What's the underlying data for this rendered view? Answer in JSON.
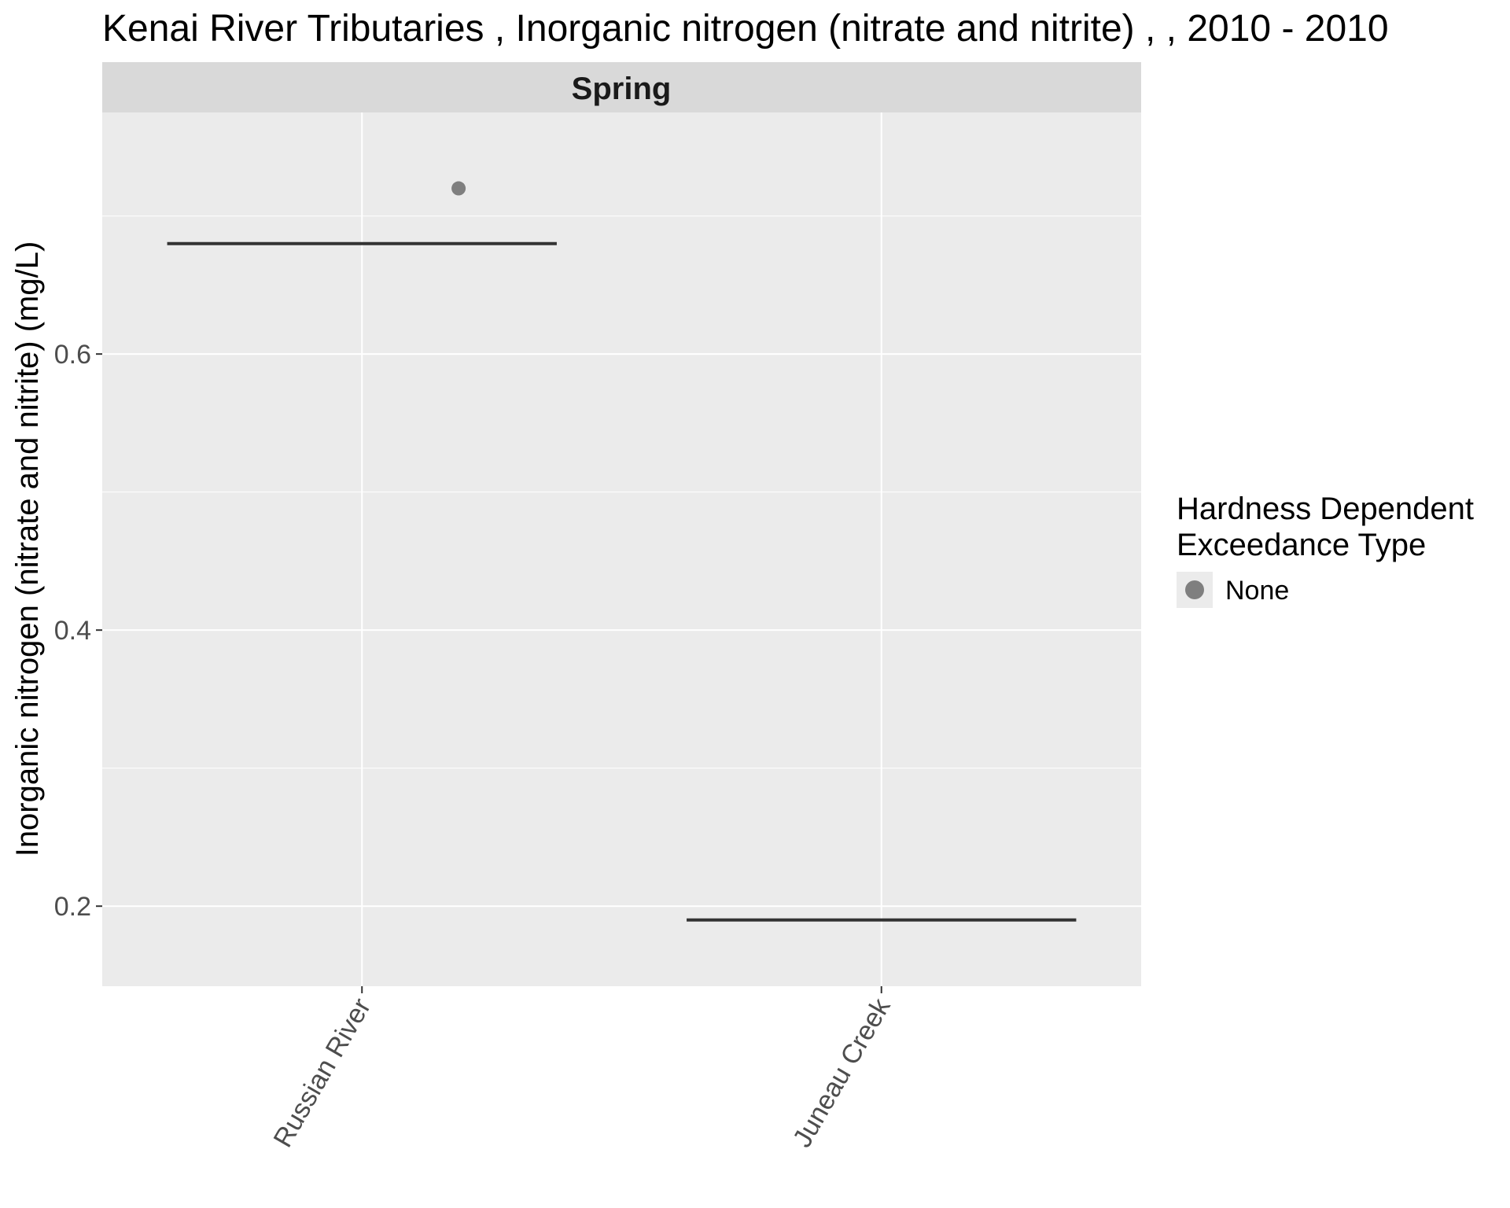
{
  "chart_data": {
    "type": "scatter",
    "title": "Kenai River Tributaries , Inorganic nitrogen (nitrate and nitrite) ,  , 2010 - 2010",
    "facet": "Spring",
    "xlabel": "",
    "ylabel": "Inorganic nitrogen (nitrate and nitrite) (mg/L)",
    "categories": [
      "Russian River",
      "Juneau Creek"
    ],
    "ylim": [
      0.142,
      0.775
    ],
    "yticks": [
      0.2,
      0.4,
      0.6
    ],
    "ytick_labels": [
      "0.2",
      "0.4",
      "0.6"
    ],
    "grid": true,
    "series": [
      {
        "name": "None",
        "color": "#7f7f7f",
        "points": [
          {
            "category": "Russian River",
            "y": 0.72
          }
        ]
      }
    ],
    "reference_lines": [
      {
        "category": "Russian River",
        "y": 0.68,
        "color": "#333333"
      },
      {
        "category": "Juneau Creek",
        "y": 0.19,
        "color": "#333333"
      }
    ],
    "legend": {
      "title_lines": [
        "Hardness Dependent",
        "Exceedance Type"
      ],
      "entries": [
        "None"
      ],
      "position": "right"
    },
    "panel_background": "#ebebeb",
    "strip_background": "#d9d9d9"
  }
}
